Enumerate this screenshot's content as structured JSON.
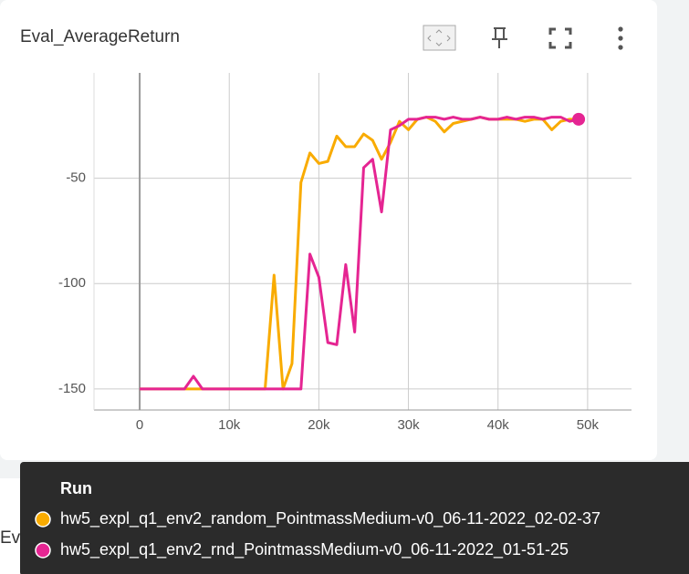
{
  "card": {
    "title": "Eval_AverageReturn"
  },
  "chart_data": {
    "type": "line",
    "x": [
      0,
      1000,
      2000,
      3000,
      4000,
      5000,
      6000,
      7000,
      8000,
      9000,
      10000,
      11000,
      12000,
      13000,
      14000,
      15000,
      16000,
      17000,
      18000,
      19000,
      20000,
      21000,
      22000,
      23000,
      24000,
      25000,
      26000,
      27000,
      28000,
      29000,
      30000,
      31000,
      32000,
      33000,
      34000,
      35000,
      36000,
      37000,
      38000,
      39000,
      40000,
      41000,
      42000,
      43000,
      44000,
      45000,
      46000,
      47000,
      48000,
      49000
    ],
    "series": [
      {
        "name": "hw5_expl_q1_env2_random_PointmassMedium-v0_06-11-2022_02-02-37",
        "color": "#f9ab00",
        "values": [
          -150,
          -150,
          -150,
          -150,
          -150,
          -150,
          -150,
          -150,
          -150,
          -150,
          -150,
          -150,
          -150,
          -150,
          -150,
          -96,
          -150,
          -138,
          -52,
          -38,
          -43,
          -42,
          -30,
          -35,
          -35,
          -29,
          -32,
          -41,
          -33,
          -23,
          -27,
          -22,
          -21,
          -23,
          -28,
          -24,
          -23,
          -22,
          -21,
          -22,
          -22,
          -22,
          -22,
          -23,
          -22,
          -22,
          -27,
          -23,
          -22,
          -22
        ]
      },
      {
        "name": "hw5_expl_q1_env2_rnd_PointmassMedium-v0_06-11-2022_01-51-25",
        "color": "#e52592",
        "values": [
          -150,
          -150,
          -150,
          -150,
          -150,
          -150,
          -144,
          -150,
          -150,
          -150,
          -150,
          -150,
          -150,
          -150,
          -150,
          -150,
          -150,
          -150,
          -150,
          -86,
          -97,
          -128,
          -129,
          -91,
          -123,
          -45,
          -41,
          -66,
          -27,
          -25,
          -22,
          -22,
          -21,
          -21,
          -22,
          -21,
          -22,
          -22,
          -21,
          -22,
          -22,
          -21,
          -22,
          -21,
          -21,
          -22,
          -21,
          -21,
          -23,
          -22
        ]
      }
    ],
    "xlim": [
      -5100,
      54900
    ],
    "ylim": [
      -160,
      0
    ],
    "xticks": [
      0,
      {
        "value": 10000,
        "label": "10k"
      },
      {
        "value": 20000,
        "label": "20k"
      },
      {
        "value": 30000,
        "label": "30k"
      },
      {
        "value": 40000,
        "label": "40k"
      },
      {
        "value": 50000,
        "label": "50k"
      }
    ],
    "yticks": [
      -150,
      -100,
      -50
    ],
    "grid": true
  },
  "tooltip": {
    "header": "Run"
  },
  "next_card": {
    "title": "Eval_MaxReturn"
  }
}
